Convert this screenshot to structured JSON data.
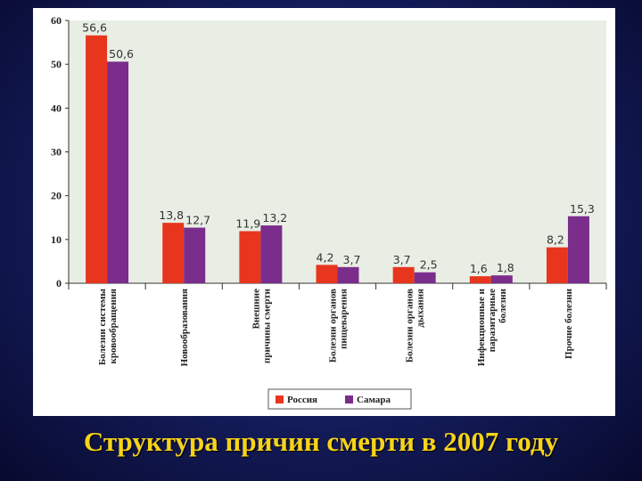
{
  "title": "Структура причин смерти в 2007 году",
  "colors": {
    "russia": "#e8361e",
    "samara": "#7b2d8c",
    "plot_bg": "#e9eee4",
    "title": "#f7d31a"
  },
  "chart_data": {
    "type": "bar",
    "title": "",
    "xlabel": "",
    "ylabel": "",
    "ylim": [
      0,
      60
    ],
    "yticks": [
      "0",
      "10",
      "20",
      "30",
      "40",
      "50",
      "60"
    ],
    "grid": false,
    "legend_position": "bottom",
    "categories": [
      [
        "Болезни системы",
        "кровообращения"
      ],
      [
        "Новообразования"
      ],
      [
        "Внешние",
        "причины смерти"
      ],
      [
        "Болезни органов",
        "пищеварения"
      ],
      [
        "Болезни органов",
        "дыхания"
      ],
      [
        "Инфекционные и",
        "паразитарные",
        "болезни"
      ],
      [
        "Прочие болезни"
      ]
    ],
    "series": [
      {
        "name": "Россия",
        "values": [
          56.6,
          13.8,
          11.9,
          4.2,
          3.7,
          1.6,
          8.2
        ],
        "labels": [
          "56,6",
          "13,8",
          "11,9",
          "4,2",
          "3,7",
          "1,6",
          "8,2"
        ]
      },
      {
        "name": "Самара",
        "values": [
          50.6,
          12.7,
          13.2,
          3.7,
          2.5,
          1.8,
          15.3
        ],
        "labels": [
          "50,6",
          "12,7",
          "13,2",
          "3,7",
          "2,5",
          "1,8",
          "15,3"
        ]
      }
    ]
  }
}
